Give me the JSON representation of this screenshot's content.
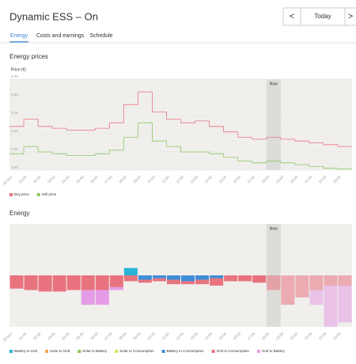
{
  "header": {
    "title": "Dynamic ESS – On",
    "prev": "<",
    "date": "Today",
    "next": ">"
  },
  "tabs": [
    "Energy",
    "Costs and earnings",
    "Schedule"
  ],
  "sections": [
    "Energy prices",
    "Energy"
  ],
  "chart_data": [
    {
      "type": "step",
      "ylabel": "Price (€)",
      "x": [
        "26 Nov",
        "01:00",
        "02:00",
        "03:00",
        "04:00",
        "05:00",
        "06:00",
        "07:00",
        "08:00",
        "09:00",
        "10:00",
        "11:00",
        "12:00",
        "13:00",
        "14:00",
        "15:00",
        "16:00",
        "17:00",
        "18:00",
        "19:00",
        "20:00",
        "21:00",
        "22:00",
        "23:00"
      ],
      "series": [
        {
          "name": "Buy price",
          "color": "#e8737f",
          "values": [
            0.12,
            0.14,
            0.12,
            0.115,
            0.11,
            0.11,
            0.115,
            0.13,
            0.18,
            0.215,
            0.16,
            0.14,
            0.13,
            0.135,
            0.12,
            0.105,
            0.09,
            0.085,
            0.09,
            0.085,
            0.08,
            0.075,
            0.07,
            0.065
          ]
        },
        {
          "name": "Sell price",
          "color": "#8cc665",
          "values": [
            0.045,
            0.065,
            0.05,
            0.045,
            0.04,
            0.04,
            0.045,
            0.055,
            0.09,
            0.13,
            0.08,
            0.065,
            0.05,
            0.05,
            0.045,
            0.035,
            0.025,
            0.02,
            0.025,
            0.02,
            0.015,
            0.01,
            0.005,
            0.003
          ]
        }
      ],
      "ylim": [
        0,
        0.25
      ],
      "yticks": [
        {
          "value": 0,
          "label": "0.00"
        },
        {
          "value": 0.05,
          "label": "0.05"
        },
        {
          "value": 0.1,
          "label": "0.10"
        },
        {
          "value": 0.15,
          "label": "0.15"
        },
        {
          "value": 0.2,
          "label": "0.20"
        },
        {
          "value": 0.25,
          "label": "0.25"
        }
      ],
      "annotation": {
        "text": "Now",
        "x": 18
      }
    },
    {
      "type": "stacked_bar",
      "x": [
        "26 Nov",
        "01:00",
        "02:00",
        "03:00",
        "04:00",
        "05:00",
        "06:00",
        "07:00",
        "08:00",
        "09:00",
        "10:00",
        "11:00",
        "12:00",
        "13:00",
        "14:00",
        "15:00",
        "16:00",
        "17:00",
        "18:00",
        "19:00",
        "20:00",
        "21:00",
        "22:00",
        "23:00"
      ],
      "series": [
        {
          "name": "Battery to Grid",
          "color": "#27b4d8",
          "values": [
            0,
            0,
            0,
            0,
            0,
            0,
            0,
            0,
            0.5,
            0,
            0,
            0,
            0,
            0,
            0,
            0,
            0,
            0,
            0,
            0,
            0,
            0,
            0,
            0
          ]
        },
        {
          "name": "Solar to Grid",
          "color": "#f5a64b",
          "values": [
            0,
            0,
            0,
            0,
            0,
            0,
            0,
            0,
            0,
            0,
            0,
            0,
            0,
            0,
            0,
            0,
            0,
            0,
            0,
            0,
            0,
            0,
            0,
            0
          ]
        },
        {
          "name": "Solar to Battery",
          "color": "#8cc665",
          "values": [
            0,
            0,
            0,
            0,
            0,
            0,
            0,
            0,
            0,
            0,
            0,
            0,
            0,
            0,
            0,
            0,
            0,
            0,
            0,
            0,
            0,
            0,
            0,
            0
          ]
        },
        {
          "name": "Solar to Consumption",
          "color": "#d6e35a",
          "values": [
            0,
            0,
            0,
            0,
            0,
            0,
            0,
            0,
            0,
            0,
            0,
            0,
            0,
            0,
            0,
            0,
            0,
            0,
            0,
            0,
            0,
            0,
            0,
            0
          ]
        },
        {
          "name": "Battery to Consumption",
          "color": "#3f8dd6",
          "values": [
            0,
            0,
            0,
            0,
            0,
            0,
            0,
            0,
            0,
            -0.3,
            -0.2,
            -0.3,
            -0.4,
            -0.3,
            -0.2,
            0,
            0,
            0,
            0,
            0,
            0,
            0,
            0,
            0
          ]
        },
        {
          "name": "Grid to Consumption",
          "color": "#e8737f",
          "values": [
            -0.9,
            -1.0,
            -1.1,
            -1.1,
            -1.0,
            -1.0,
            -1.0,
            -0.8,
            -0.4,
            -0.2,
            -0.2,
            -0.3,
            -0.2,
            -0.3,
            -0.5,
            -0.4,
            -0.4,
            -0.5,
            -1.0,
            -2.0,
            -1.5,
            -1.0,
            -0.7,
            -0.7
          ]
        },
        {
          "name": "Grid to Battery",
          "color": "#e59ce6",
          "values": [
            0,
            0,
            0,
            0,
            0,
            -1.0,
            -1.0,
            -0.2,
            0,
            0,
            0,
            0,
            0,
            0,
            0,
            0,
            0,
            0,
            0,
            0,
            0,
            -1.0,
            -2.8,
            -2.5
          ]
        }
      ],
      "ylim": [
        -3.5,
        3.5
      ],
      "annotation": {
        "text": "Now",
        "x": 18
      }
    }
  ]
}
